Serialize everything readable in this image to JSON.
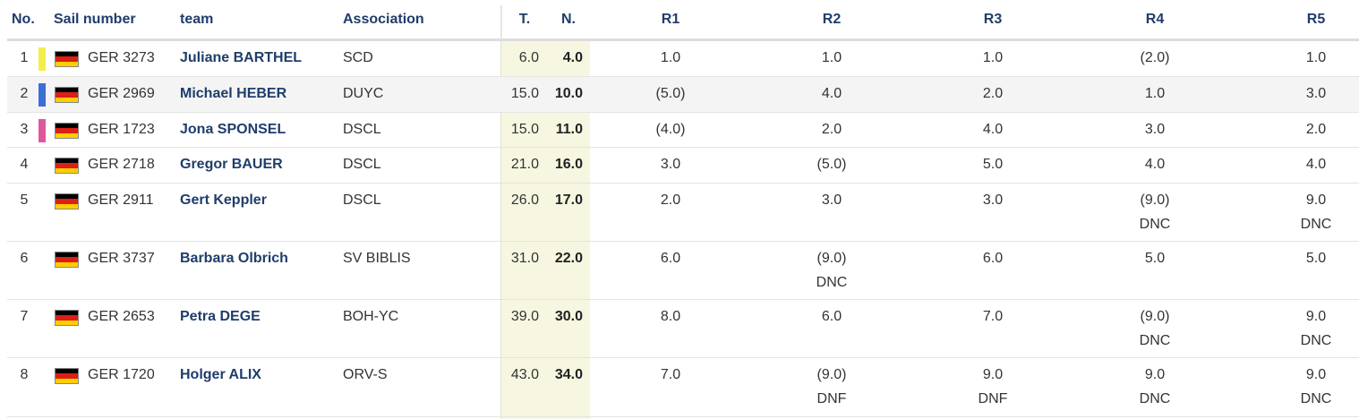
{
  "headers": {
    "no": "No.",
    "sail": "Sail number",
    "team": "team",
    "assoc": "Association",
    "total": "T.",
    "net": "N.",
    "r1": "R1",
    "r2": "R2",
    "r3": "R3",
    "r4": "R4",
    "r5": "R5"
  },
  "colors": {
    "header_text": "#1f3d6b",
    "name_text": "#1f3d6b",
    "totals_column_bg": "#f7f7e1",
    "alt_row_bg": "#f4f4f4",
    "rank1_marker": "#f5ee4a",
    "rank2_marker": "#3b6fd6",
    "rank3_marker": "#e0579b"
  },
  "rows": [
    {
      "no": "1",
      "flag": "germany-flag-icon",
      "sail": "GER 3273",
      "name": "Juliane BARTHEL",
      "assoc": "SCD",
      "total": "6.0",
      "net": "4.0",
      "r1": "1.0",
      "r2": "1.0",
      "r3": "1.0",
      "r4": "(2.0)",
      "r5": "1.0",
      "r1s": "",
      "r2s": "",
      "r3s": "",
      "r4s": "",
      "r5s": ""
    },
    {
      "no": "2",
      "flag": "germany-flag-icon",
      "sail": "GER 2969",
      "name": "Michael HEBER",
      "assoc": "DUYC",
      "total": "15.0",
      "net": "10.0",
      "r1": "(5.0)",
      "r2": "4.0",
      "r3": "2.0",
      "r4": "1.0",
      "r5": "3.0",
      "r1s": "",
      "r2s": "",
      "r3s": "",
      "r4s": "",
      "r5s": ""
    },
    {
      "no": "3",
      "flag": "germany-flag-icon",
      "sail": "GER 1723",
      "name": "Jona SPONSEL",
      "assoc": "DSCL",
      "total": "15.0",
      "net": "11.0",
      "r1": "(4.0)",
      "r2": "2.0",
      "r3": "4.0",
      "r4": "3.0",
      "r5": "2.0",
      "r1s": "",
      "r2s": "",
      "r3s": "",
      "r4s": "",
      "r5s": ""
    },
    {
      "no": "4",
      "flag": "germany-flag-icon",
      "sail": "GER 2718",
      "name": "Gregor BAUER",
      "assoc": "DSCL",
      "total": "21.0",
      "net": "16.0",
      "r1": "3.0",
      "r2": "(5.0)",
      "r3": "5.0",
      "r4": "4.0",
      "r5": "4.0",
      "r1s": "",
      "r2s": "",
      "r3s": "",
      "r4s": "",
      "r5s": ""
    },
    {
      "no": "5",
      "flag": "germany-flag-icon",
      "sail": "GER 2911",
      "name": "Gert Keppler",
      "assoc": "DSCL",
      "total": "26.0",
      "net": "17.0",
      "r1": "2.0",
      "r2": "3.0",
      "r3": "3.0",
      "r4": "(9.0)",
      "r5": "9.0",
      "r1s": "",
      "r2s": "",
      "r3s": "",
      "r4s": "DNC",
      "r5s": "DNC"
    },
    {
      "no": "6",
      "flag": "germany-flag-icon",
      "sail": "GER 3737",
      "name": "Barbara Olbrich",
      "assoc": "SV BIBLIS",
      "total": "31.0",
      "net": "22.0",
      "r1": "6.0",
      "r2": "(9.0)",
      "r3": "6.0",
      "r4": "5.0",
      "r5": "5.0",
      "r1s": "",
      "r2s": "DNC",
      "r3s": "",
      "r4s": "",
      "r5s": ""
    },
    {
      "no": "7",
      "flag": "germany-flag-icon",
      "sail": "GER 2653",
      "name": "Petra DEGE",
      "assoc": "BOH-YC",
      "total": "39.0",
      "net": "30.0",
      "r1": "8.0",
      "r2": "6.0",
      "r3": "7.0",
      "r4": "(9.0)",
      "r5": "9.0",
      "r1s": "",
      "r2s": "",
      "r3s": "",
      "r4s": "DNC",
      "r5s": "DNC"
    },
    {
      "no": "8",
      "flag": "germany-flag-icon",
      "sail": "GER 1720",
      "name": "Holger ALIX",
      "assoc": "ORV-S",
      "total": "43.0",
      "net": "34.0",
      "r1": "7.0",
      "r2": "(9.0)",
      "r3": "9.0",
      "r4": "9.0",
      "r5": "9.0",
      "r1s": "",
      "r2s": "DNF",
      "r3s": "DNF",
      "r4s": "DNC",
      "r5s": "DNC"
    }
  ]
}
